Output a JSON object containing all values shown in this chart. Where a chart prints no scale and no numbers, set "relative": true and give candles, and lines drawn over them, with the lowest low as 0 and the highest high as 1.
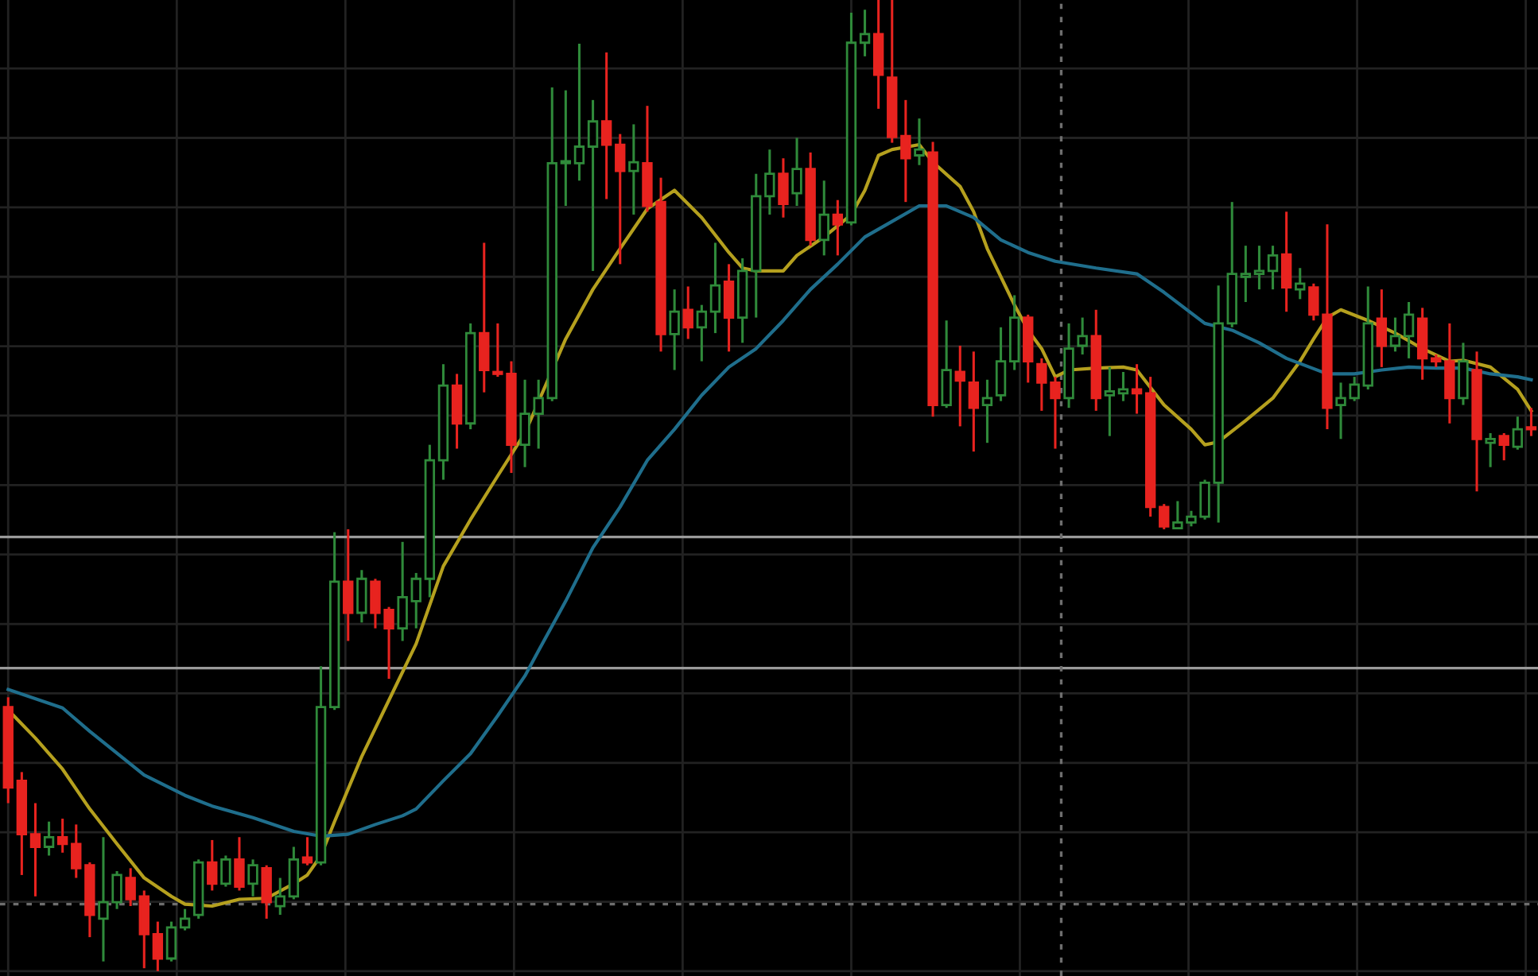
{
  "chart_data": {
    "type": "candlestick",
    "relative": true,
    "grid": true,
    "legend": false,
    "categories": [
      null,
      null,
      null,
      null,
      null,
      null,
      null,
      null,
      null,
      null,
      null,
      null,
      null,
      null,
      null,
      null,
      null,
      null,
      null,
      null,
      null,
      null,
      null,
      null,
      null,
      null,
      null,
      null,
      null,
      null,
      null,
      null,
      null,
      null,
      null,
      null,
      null,
      null,
      null,
      null,
      null,
      null,
      null,
      null,
      null,
      null,
      null,
      null,
      null,
      null,
      null,
      null,
      null,
      null,
      null,
      null,
      null,
      null,
      null,
      null,
      null,
      null,
      null,
      null,
      null,
      null,
      null,
      null,
      null,
      null,
      null,
      null,
      null,
      null,
      null,
      null,
      null,
      null,
      null,
      null,
      null,
      null,
      null,
      null,
      null,
      null,
      null,
      null,
      null,
      null,
      null,
      null,
      null,
      null,
      null,
      null,
      null,
      null,
      null,
      null,
      null,
      null,
      null,
      null,
      null,
      null,
      null,
      null,
      null,
      null,
      null,
      null,
      null
    ],
    "ohlc": [
      [
        0.272,
        0.282,
        0.173,
        0.189
      ],
      [
        0.196,
        0.205,
        0.099,
        0.141
      ],
      [
        0.141,
        0.173,
        0.077,
        0.128
      ],
      [
        0.128,
        0.154,
        0.119,
        0.138
      ],
      [
        0.138,
        0.157,
        0.122,
        0.131
      ],
      [
        0.131,
        0.151,
        0.096,
        0.106
      ],
      [
        0.109,
        0.112,
        0.035,
        0.058
      ],
      [
        0.054,
        0.138,
        0.01,
        0.071
      ],
      [
        0.071,
        0.103,
        0.064,
        0.099
      ],
      [
        0.096,
        0.106,
        0.067,
        0.074
      ],
      [
        0.077,
        0.083,
        0.003,
        0.038
      ],
      [
        0.038,
        0.051,
        0.0,
        0.013
      ],
      [
        0.013,
        0.051,
        0.01,
        0.045
      ],
      [
        0.045,
        0.064,
        0.042,
        0.054
      ],
      [
        0.058,
        0.115,
        0.054,
        0.112
      ],
      [
        0.112,
        0.135,
        0.083,
        0.09
      ],
      [
        0.09,
        0.119,
        0.087,
        0.115
      ],
      [
        0.115,
        0.138,
        0.083,
        0.087
      ],
      [
        0.09,
        0.115,
        0.077,
        0.109
      ],
      [
        0.106,
        0.109,
        0.054,
        0.071
      ],
      [
        0.067,
        0.096,
        0.058,
        0.077
      ],
      [
        0.077,
        0.128,
        0.074,
        0.115
      ],
      [
        0.117,
        0.138,
        0.109,
        0.112
      ],
      [
        0.112,
        0.314,
        0.109,
        0.272
      ],
      [
        0.272,
        0.452,
        0.269,
        0.401
      ],
      [
        0.401,
        0.455,
        0.34,
        0.369
      ],
      [
        0.369,
        0.413,
        0.359,
        0.404
      ],
      [
        0.401,
        0.404,
        0.353,
        0.369
      ],
      [
        0.372,
        0.375,
        0.301,
        0.353
      ],
      [
        0.353,
        0.442,
        0.34,
        0.385
      ],
      [
        0.381,
        0.41,
        0.353,
        0.404
      ],
      [
        0.404,
        0.542,
        0.385,
        0.526
      ],
      [
        0.526,
        0.625,
        0.506,
        0.603
      ],
      [
        0.603,
        0.615,
        0.538,
        0.564
      ],
      [
        0.564,
        0.667,
        0.558,
        0.657
      ],
      [
        0.657,
        0.75,
        0.596,
        0.619
      ],
      [
        0.617,
        0.667,
        0.612,
        0.615
      ],
      [
        0.615,
        0.628,
        0.513,
        0.542
      ],
      [
        0.542,
        0.609,
        0.519,
        0.574
      ],
      [
        0.574,
        0.609,
        0.538,
        0.59
      ],
      [
        0.59,
        0.91,
        0.587,
        0.832
      ],
      [
        0.832,
        0.907,
        0.788,
        0.833
      ],
      [
        0.832,
        0.955,
        0.814,
        0.849
      ],
      [
        0.849,
        0.897,
        0.721,
        0.875
      ],
      [
        0.875,
        0.946,
        0.795,
        0.851
      ],
      [
        0.851,
        0.862,
        0.728,
        0.824
      ],
      [
        0.824,
        0.872,
        0.779,
        0.833
      ],
      [
        0.832,
        0.891,
        0.782,
        0.788
      ],
      [
        0.792,
        0.817,
        0.638,
        0.656
      ],
      [
        0.656,
        0.702,
        0.619,
        0.679
      ],
      [
        0.681,
        0.705,
        0.651,
        0.663
      ],
      [
        0.663,
        0.686,
        0.628,
        0.679
      ],
      [
        0.679,
        0.75,
        0.657,
        0.706
      ],
      [
        0.71,
        0.728,
        0.638,
        0.673
      ],
      [
        0.673,
        0.734,
        0.647,
        0.721
      ],
      [
        0.721,
        0.821,
        0.673,
        0.798
      ],
      [
        0.798,
        0.846,
        0.779,
        0.821
      ],
      [
        0.821,
        0.837,
        0.776,
        0.79
      ],
      [
        0.801,
        0.858,
        0.788,
        0.826
      ],
      [
        0.826,
        0.843,
        0.747,
        0.753
      ],
      [
        0.753,
        0.814,
        0.737,
        0.779
      ],
      [
        0.779,
        0.794,
        0.737,
        0.769
      ],
      [
        0.771,
        0.987,
        0.768,
        0.956
      ],
      [
        0.956,
        0.99,
        0.942,
        0.965
      ],
      [
        0.965,
        1.0,
        0.888,
        0.923
      ],
      [
        0.92,
        1.0,
        0.853,
        0.859
      ],
      [
        0.86,
        0.897,
        0.792,
        0.837
      ],
      [
        0.84,
        0.878,
        0.83,
        0.846
      ],
      [
        0.843,
        0.854,
        0.571,
        0.583
      ],
      [
        0.583,
        0.67,
        0.58,
        0.619
      ],
      [
        0.617,
        0.644,
        0.561,
        0.608
      ],
      [
        0.606,
        0.638,
        0.535,
        0.58
      ],
      [
        0.583,
        0.609,
        0.544,
        0.59
      ],
      [
        0.593,
        0.663,
        0.587,
        0.628
      ],
      [
        0.628,
        0.696,
        0.619,
        0.673
      ],
      [
        0.673,
        0.676,
        0.606,
        0.628
      ],
      [
        0.625,
        0.631,
        0.577,
        0.606
      ],
      [
        0.606,
        0.612,
        0.538,
        0.59
      ],
      [
        0.59,
        0.667,
        0.58,
        0.641
      ],
      [
        0.644,
        0.673,
        0.635,
        0.654
      ],
      [
        0.654,
        0.681,
        0.577,
        0.59
      ],
      [
        0.593,
        0.622,
        0.551,
        0.597
      ],
      [
        0.595,
        0.617,
        0.587,
        0.599
      ],
      [
        0.599,
        0.625,
        0.574,
        0.595
      ],
      [
        0.595,
        0.612,
        0.468,
        0.478
      ],
      [
        0.478,
        0.481,
        0.455,
        0.458
      ],
      [
        0.456,
        0.484,
        0.455,
        0.462
      ],
      [
        0.462,
        0.474,
        0.458,
        0.468
      ],
      [
        0.468,
        0.506,
        0.465,
        0.503
      ],
      [
        0.503,
        0.706,
        0.462,
        0.667
      ],
      [
        0.667,
        0.792,
        0.663,
        0.718
      ],
      [
        0.715,
        0.747,
        0.689,
        0.718
      ],
      [
        0.718,
        0.747,
        0.702,
        0.721
      ],
      [
        0.721,
        0.747,
        0.702,
        0.737
      ],
      [
        0.738,
        0.782,
        0.679,
        0.704
      ],
      [
        0.702,
        0.724,
        0.692,
        0.708
      ],
      [
        0.704,
        0.708,
        0.67,
        0.676
      ],
      [
        0.676,
        0.769,
        0.558,
        0.58
      ],
      [
        0.583,
        0.606,
        0.548,
        0.59
      ],
      [
        0.59,
        0.612,
        0.587,
        0.604
      ],
      [
        0.603,
        0.705,
        0.599,
        0.667
      ],
      [
        0.672,
        0.702,
        0.622,
        0.644
      ],
      [
        0.644,
        0.673,
        0.638,
        0.654
      ],
      [
        0.654,
        0.689,
        0.631,
        0.676
      ],
      [
        0.672,
        0.683,
        0.609,
        0.631
      ],
      [
        0.631,
        0.635,
        0.622,
        0.628
      ],
      [
        0.628,
        0.667,
        0.564,
        0.59
      ],
      [
        0.59,
        0.647,
        0.583,
        0.628
      ],
      [
        0.619,
        0.638,
        0.494,
        0.548
      ],
      [
        0.544,
        0.554,
        0.519,
        0.548
      ],
      [
        0.551,
        0.554,
        0.526,
        0.542
      ],
      [
        0.54,
        0.571,
        0.537,
        0.558
      ],
      [
        0.559,
        0.58,
        0.551,
        0.558
      ]
    ],
    "colors": [
      "#e8231f",
      "#e8231f",
      "#e8231f",
      "#2f8a3a",
      "#e8231f",
      "#e8231f",
      "#e8231f",
      "#2f8a3a",
      "#2f8a3a",
      "#e8231f",
      "#e8231f",
      "#e8231f",
      "#2f8a3a",
      "#2f8a3a",
      "#2f8a3a",
      "#e8231f",
      "#2f8a3a",
      "#e8231f",
      "#2f8a3a",
      "#e8231f",
      "#2f8a3a",
      "#2f8a3a",
      "#e8231f",
      "#2f8a3a",
      "#2f8a3a",
      "#e8231f",
      "#2f8a3a",
      "#e8231f",
      "#e8231f",
      "#2f8a3a",
      "#2f8a3a",
      "#2f8a3a",
      "#2f8a3a",
      "#e8231f",
      "#2f8a3a",
      "#e8231f",
      "#e8231f",
      "#e8231f",
      "#2f8a3a",
      "#2f8a3a",
      "#2f8a3a",
      "#2f8a3a",
      "#2f8a3a",
      "#2f8a3a",
      "#e8231f",
      "#e8231f",
      "#2f8a3a",
      "#e8231f",
      "#e8231f",
      "#2f8a3a",
      "#e8231f",
      "#2f8a3a",
      "#2f8a3a",
      "#e8231f",
      "#2f8a3a",
      "#2f8a3a",
      "#2f8a3a",
      "#e8231f",
      "#2f8a3a",
      "#e8231f",
      "#2f8a3a",
      "#e8231f",
      "#2f8a3a",
      "#2f8a3a",
      "#e8231f",
      "#e8231f",
      "#e8231f",
      "#2f8a3a",
      "#e8231f",
      "#2f8a3a",
      "#e8231f",
      "#e8231f",
      "#2f8a3a",
      "#2f8a3a",
      "#2f8a3a",
      "#e8231f",
      "#e8231f",
      "#e8231f",
      "#2f8a3a",
      "#2f8a3a",
      "#e8231f",
      "#2f8a3a",
      "#2f8a3a",
      "#e8231f",
      "#e8231f",
      "#e8231f",
      "#2f8a3a",
      "#2f8a3a",
      "#2f8a3a",
      "#2f8a3a",
      "#2f8a3a",
      "#2f8a3a",
      "#2f8a3a",
      "#2f8a3a",
      "#e8231f",
      "#2f8a3a",
      "#e8231f",
      "#e8231f",
      "#2f8a3a",
      "#2f8a3a",
      "#2f8a3a",
      "#e8231f",
      "#2f8a3a",
      "#2f8a3a",
      "#e8231f",
      "#e8231f",
      "#e8231f",
      "#2f8a3a",
      "#e8231f",
      "#2f8a3a",
      "#e8231f",
      "#2f8a3a",
      "#e8231f"
    ],
    "series": [
      {
        "type": "line",
        "color": "#b5a01e",
        "values": [
          0.269,
          null,
          0.24,
          null,
          0.208,
          null,
          0.167,
          null,
          0.131,
          null,
          0.096,
          null,
          0.077,
          0.069,
          null,
          0.067,
          null,
          0.074,
          null,
          0.075,
          null,
          0.09,
          0.099,
          0.119,
          0.154,
          null,
          0.221,
          null,
          0.279,
          null,
          0.337,
          null,
          0.417,
          null,
          0.465,
          null,
          0.51,
          null,
          0.554,
          null,
          null,
          0.651,
          null,
          0.702,
          null,
          0.744,
          null,
          0.785,
          null,
          0.804,
          null,
          0.776,
          null,
          0.74,
          0.724,
          0.721,
          null,
          0.721,
          0.737,
          null,
          0.756,
          null,
          0.779,
          0.804,
          0.84,
          0.846,
          null,
          0.851,
          0.833,
          null,
          0.808,
          0.782,
          0.744,
          null,
          0.686,
          0.66,
          0.641,
          0.612,
          0.619,
          null,
          0.621,
          null,
          0.622,
          0.619,
          null,
          0.583,
          null,
          0.558,
          0.542,
          0.545,
          null,
          0.567,
          null,
          0.59,
          null,
          0.628,
          0.651,
          0.673,
          0.681,
          null,
          0.67,
          null,
          0.657,
          null,
          0.641,
          null,
          0.628,
          0.629,
          null,
          0.622,
          null,
          0.599,
          0.577
        ]
      },
      {
        "type": "line",
        "color": "#1f6e8c",
        "values": [
          0.29,
          null,
          null,
          null,
          0.271,
          null,
          0.247,
          null,
          null,
          null,
          0.202,
          null,
          null,
          0.181,
          null,
          0.17,
          null,
          null,
          0.158,
          null,
          null,
          0.144,
          null,
          0.139,
          null,
          0.141,
          null,
          0.151,
          null,
          0.16,
          0.167,
          null,
          0.196,
          null,
          0.224,
          null,
          0.263,
          null,
          0.304,
          0.33,
          null,
          0.381,
          null,
          0.436,
          null,
          0.478,
          null,
          0.526,
          null,
          0.558,
          null,
          0.593,
          null,
          0.622,
          null,
          0.641,
          null,
          0.67,
          null,
          0.702,
          null,
          0.728,
          null,
          0.756,
          null,
          0.772,
          null,
          0.788,
          null,
          0.788,
          null,
          0.776,
          null,
          0.753,
          null,
          0.74,
          null,
          0.731,
          null,
          null,
          0.724,
          null,
          null,
          0.718,
          null,
          0.699,
          null,
          null,
          0.667,
          null,
          0.66,
          null,
          0.647,
          null,
          0.631,
          null,
          null,
          0.615,
          null,
          0.615,
          null,
          0.619,
          null,
          0.622,
          null,
          0.621,
          null,
          0.621,
          null,
          0.615,
          null,
          0.612,
          0.609
        ]
      }
    ],
    "ref_lines": [
      {
        "axis": "y",
        "value": 0.447,
        "color": "#9a9a9a",
        "line_style": "solid"
      },
      {
        "axis": "y",
        "value": 0.312,
        "color": "#9a9a9a",
        "line_style": "solid"
      },
      {
        "axis": "y",
        "value": 0.069,
        "color": "#6e6e6e",
        "line_style": "dotted"
      }
    ]
  }
}
